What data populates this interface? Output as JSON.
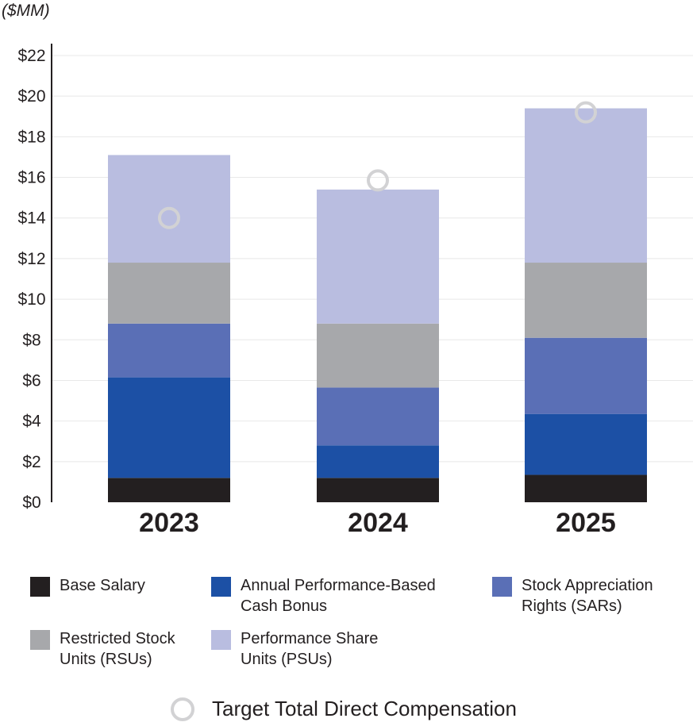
{
  "unit_label": "($MM)",
  "colors": {
    "base": "#231f20",
    "bonus": "#1c50a5",
    "sars": "#5a6fb6",
    "rsus": "#a7a8ab",
    "psus": "#b9bde0",
    "target": "#d2d2d4",
    "grid": "#e8e8e8",
    "axis": "#231f20"
  },
  "chart_data": {
    "type": "bar",
    "stacked": true,
    "title": "",
    "xlabel": "",
    "ylabel": "($MM)",
    "categories": [
      "2023",
      "2024",
      "2025"
    ],
    "ylim": [
      0,
      22
    ],
    "yticks": [
      0,
      2,
      4,
      6,
      8,
      10,
      12,
      14,
      16,
      18,
      20,
      22
    ],
    "ytick_labels": [
      "$0",
      "$2",
      "$4",
      "$6",
      "$8",
      "$10",
      "$12",
      "$14",
      "$16",
      "$18",
      "$20",
      "$22"
    ],
    "grid": true,
    "series": [
      {
        "name": "Base Salary",
        "key": "base",
        "values": [
          1.2,
          1.2,
          1.35
        ]
      },
      {
        "name": "Annual Performance-Based Cash Bonus",
        "key": "bonus",
        "values": [
          4.95,
          1.6,
          3.0
        ]
      },
      {
        "name": "Stock Appreciation Rights (SARs)",
        "key": "sars",
        "values": [
          2.65,
          2.85,
          3.75
        ]
      },
      {
        "name": "Restricted Stock Units (RSUs)",
        "key": "rsus",
        "values": [
          3.0,
          3.15,
          3.7
        ]
      },
      {
        "name": "Performance Share Units (PSUs)",
        "key": "psus",
        "values": [
          5.3,
          6.6,
          7.6
        ]
      }
    ],
    "target_series": {
      "name": "Target Total Direct Compensation",
      "values": [
        14.0,
        15.85,
        19.2
      ]
    }
  },
  "legend": [
    {
      "key": "base",
      "label": "Base Salary"
    },
    {
      "key": "bonus",
      "label": "Annual Performance-Based\nCash Bonus"
    },
    {
      "key": "sars",
      "label": "Stock Appreciation\nRights (SARs)"
    },
    {
      "key": "rsus",
      "label": "Restricted Stock\nUnits (RSUs)"
    },
    {
      "key": "psus",
      "label": "Performance Share\nUnits (PSUs)"
    }
  ],
  "target_legend_label": "Target Total Direct Compensation"
}
